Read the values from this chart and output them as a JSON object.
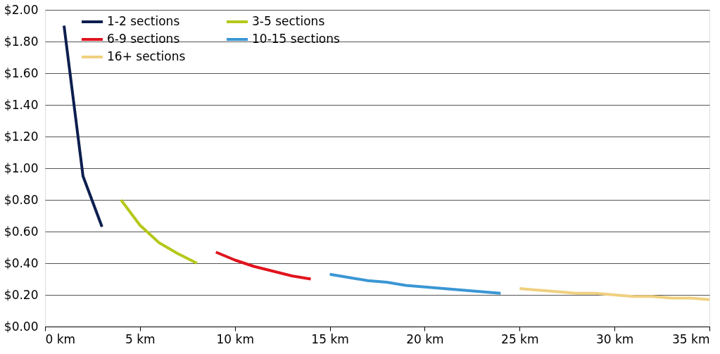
{
  "chart_data": {
    "type": "line",
    "xlim": [
      0,
      35
    ],
    "ylim": [
      0,
      2
    ],
    "xticks": [
      {
        "value": 0,
        "label": "0 km"
      },
      {
        "value": 5,
        "label": "5 km"
      },
      {
        "value": 10,
        "label": "10 km"
      },
      {
        "value": 15,
        "label": "15 km"
      },
      {
        "value": 20,
        "label": "20 km"
      },
      {
        "value": 25,
        "label": "25 km"
      },
      {
        "value": 30,
        "label": "30 km"
      },
      {
        "value": 35,
        "label": "35 km"
      }
    ],
    "yticks": [
      {
        "value": 0,
        "label": "$0.00"
      },
      {
        "value": 0.2,
        "label": "$0.20"
      },
      {
        "value": 0.4,
        "label": "$0.40"
      },
      {
        "value": 0.6,
        "label": "$0.60"
      },
      {
        "value": 0.8,
        "label": "$0.80"
      },
      {
        "value": 1,
        "label": "$1.00"
      },
      {
        "value": 1.2,
        "label": "$1.20"
      },
      {
        "value": 1.4,
        "label": "$1.40"
      },
      {
        "value": 1.6,
        "label": "$1.60"
      },
      {
        "value": 1.8,
        "label": "$1.80"
      },
      {
        "value": 2,
        "label": "$2.00"
      }
    ],
    "grid": "y",
    "legend": "top left",
    "marker": "none",
    "line_style": "solid",
    "series": [
      {
        "name": "1-2 sections",
        "color": "#0d1f4f",
        "x": [
          1,
          2,
          3
        ],
        "values": [
          1.9,
          0.95,
          0.63
        ]
      },
      {
        "name": "3-5 sections",
        "color": "#b5c81a",
        "x": [
          4,
          5,
          6,
          7,
          8
        ],
        "values": [
          0.8,
          0.64,
          0.53,
          0.46,
          0.4
        ]
      },
      {
        "name": "6-9 sections",
        "color": "#e0141e",
        "x": [
          9,
          10,
          11,
          12,
          13,
          14
        ],
        "values": [
          0.47,
          0.42,
          0.38,
          0.35,
          0.32,
          0.3
        ]
      },
      {
        "name": "10-15 sections",
        "color": "#3a96d4",
        "x": [
          15,
          16,
          17,
          18,
          19,
          20,
          21,
          22,
          23,
          24
        ],
        "values": [
          0.33,
          0.31,
          0.29,
          0.28,
          0.26,
          0.25,
          0.24,
          0.23,
          0.22,
          0.21
        ]
      },
      {
        "name": "16+ sections",
        "color": "#f0d080",
        "x": [
          25,
          26,
          27,
          28,
          29,
          30,
          31,
          32,
          33,
          34,
          35
        ],
        "values": [
          0.24,
          0.23,
          0.22,
          0.21,
          0.21,
          0.2,
          0.19,
          0.19,
          0.18,
          0.18,
          0.17
        ]
      }
    ]
  }
}
